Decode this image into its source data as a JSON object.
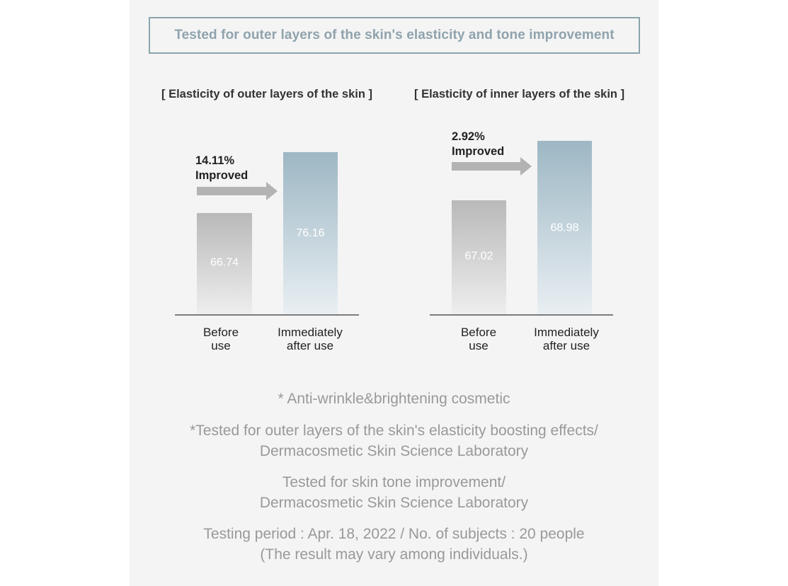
{
  "header": {
    "title": "Tested for outer layers of the skin's elasticity and tone improvement"
  },
  "chart_data": [
    {
      "type": "bar",
      "title": "[ Elasticity of outer layers of the skin ]",
      "categories": [
        [
          "Before",
          "use"
        ],
        [
          "Immediately",
          "after use"
        ]
      ],
      "values": [
        66.74,
        76.16
      ],
      "value_labels": [
        "66.74",
        "76.16"
      ],
      "annotation": [
        "14.11%",
        "Improved"
      ],
      "colors": [
        "#bdbdbd",
        "#9bb6c3"
      ]
    },
    {
      "type": "bar",
      "title": "[ Elasticity of inner layers of the skin ]",
      "categories": [
        [
          "Before",
          "use"
        ],
        [
          "Immediately",
          "after use"
        ]
      ],
      "values": [
        67.02,
        68.98
      ],
      "value_labels": [
        "67.02",
        "68.98"
      ],
      "annotation": [
        "2.92%",
        "Improved"
      ],
      "colors": [
        "#bdbdbd",
        "#9bb6c3"
      ]
    }
  ],
  "notes": {
    "line1": "* Anti-wrinkle&brightening cosmetic",
    "line2a": "*Tested for outer layers of the skin's elasticity boosting effects/",
    "line2b": "Dermacosmetic Skin Science Laboratory",
    "line3a": "Tested for skin tone improvement/",
    "line3b": "Dermacosmetic Skin Science Laboratory",
    "line4a": "Testing period : Apr. 18, 2022 / No. of subjects : 20 people",
    "line4b": "(The result may vary among individuals.)"
  }
}
